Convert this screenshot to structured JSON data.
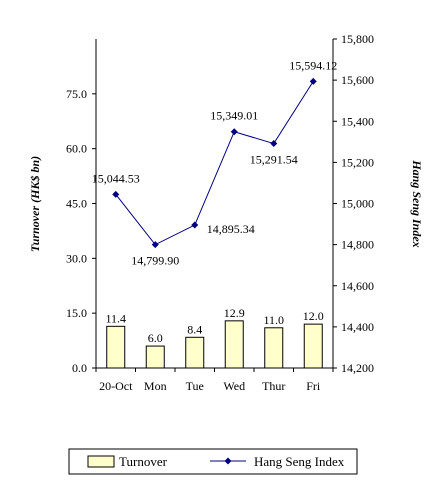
{
  "chart_data": {
    "type": "bar+line",
    "categories": [
      "20-Oct",
      "Mon",
      "Tue",
      "Wed",
      "Thur",
      "Fri"
    ],
    "series": [
      {
        "name": "Turnover",
        "type": "bar",
        "axis": "left",
        "values": [
          11.4,
          6.0,
          8.4,
          12.9,
          11.0,
          12.0
        ],
        "labels": [
          "11.4",
          "6.0",
          "8.4",
          "12.9",
          "11.0",
          "12.0"
        ],
        "color": "#ffffcc"
      },
      {
        "name": "Hang Seng Index",
        "type": "line",
        "axis": "right",
        "values": [
          15044.53,
          14799.9,
          14895.34,
          15349.01,
          15291.54,
          15594.12
        ],
        "labels": [
          "15,044.53",
          "14,799.90",
          "14,895.34",
          "15,349.01",
          "15,291.54",
          "15,594.12"
        ],
        "color": "#000080"
      }
    ],
    "left_axis": {
      "label": "Turnover (HK$ bn)",
      "ylim": [
        0,
        90
      ],
      "ticks": [
        0,
        15,
        30,
        45,
        60,
        75
      ],
      "tick_labels": [
        "0.0",
        "15.0",
        "30.0",
        "45.0",
        "60.0",
        "75.0"
      ]
    },
    "right_axis": {
      "label": "Hang Seng Index",
      "ylim": [
        14200,
        15800
      ],
      "ticks": [
        14200,
        14400,
        14600,
        14800,
        15000,
        15200,
        15400,
        15600,
        15800
      ],
      "tick_labels": [
        "14,200",
        "14,400",
        "14,600",
        "14,800",
        "15,000",
        "15,200",
        "15,400",
        "15,600",
        "15,800"
      ]
    },
    "grid": false,
    "legend": {
      "position": "bottom",
      "entries": [
        "Turnover",
        "Hang Seng Index"
      ]
    }
  }
}
